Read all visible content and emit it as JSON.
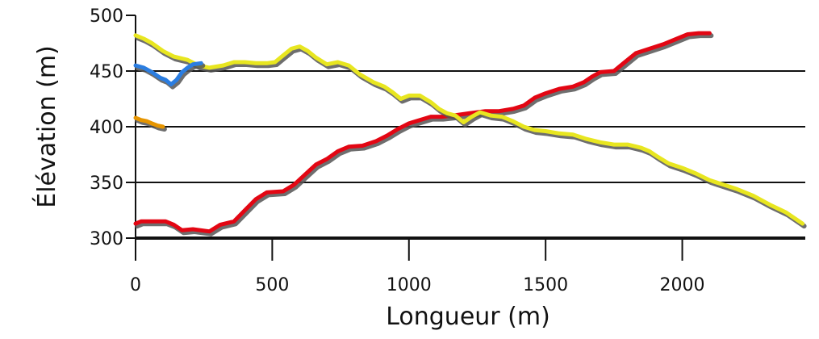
{
  "chart_data": {
    "type": "line",
    "xlabel": "Longueur (m)",
    "ylabel": "Élévation (m)",
    "xlim": [
      0,
      2450
    ],
    "ylim": [
      300,
      500
    ],
    "xticks": [
      0,
      500,
      1000,
      1500,
      2000
    ],
    "yticks": [
      300,
      350,
      400,
      450,
      500
    ],
    "grid": "horizontal",
    "colors": {
      "red": "#e30613",
      "yellow": "#e8e620",
      "blue": "#2b7de0",
      "orange": "#e69500",
      "shadow": "#555555"
    },
    "series": [
      {
        "color": "red",
        "points": [
          [
            0,
            313
          ],
          [
            20,
            315
          ],
          [
            110,
            315
          ],
          [
            140,
            312
          ],
          [
            170,
            307
          ],
          [
            210,
            308
          ],
          [
            270,
            306
          ],
          [
            310,
            312
          ],
          [
            360,
            315
          ],
          [
            400,
            325
          ],
          [
            440,
            335
          ],
          [
            480,
            341
          ],
          [
            540,
            342
          ],
          [
            580,
            348
          ],
          [
            620,
            357
          ],
          [
            660,
            366
          ],
          [
            700,
            371
          ],
          [
            740,
            378
          ],
          [
            780,
            382
          ],
          [
            830,
            383
          ],
          [
            880,
            387
          ],
          [
            920,
            392
          ],
          [
            960,
            398
          ],
          [
            1000,
            403
          ],
          [
            1040,
            406
          ],
          [
            1080,
            409
          ],
          [
            1120,
            409
          ],
          [
            1160,
            410
          ],
          [
            1220,
            412
          ],
          [
            1280,
            414
          ],
          [
            1330,
            414
          ],
          [
            1380,
            416
          ],
          [
            1420,
            419
          ],
          [
            1460,
            426
          ],
          [
            1500,
            430
          ],
          [
            1550,
            434
          ],
          [
            1600,
            436
          ],
          [
            1640,
            440
          ],
          [
            1670,
            445
          ],
          [
            1700,
            449
          ],
          [
            1750,
            450
          ],
          [
            1790,
            458
          ],
          [
            1830,
            466
          ],
          [
            1880,
            470
          ],
          [
            1930,
            474
          ],
          [
            1980,
            479
          ],
          [
            2020,
            483
          ],
          [
            2060,
            484
          ],
          [
            2100,
            484
          ]
        ]
      },
      {
        "color": "yellow",
        "points": [
          [
            0,
            482
          ],
          [
            30,
            479
          ],
          [
            60,
            475
          ],
          [
            100,
            468
          ],
          [
            140,
            463
          ],
          [
            190,
            460
          ],
          [
            230,
            455
          ],
          [
            270,
            453
          ],
          [
            320,
            455
          ],
          [
            360,
            458
          ],
          [
            400,
            458
          ],
          [
            440,
            457
          ],
          [
            480,
            457
          ],
          [
            510,
            458
          ],
          [
            540,
            464
          ],
          [
            570,
            470
          ],
          [
            600,
            472
          ],
          [
            630,
            468
          ],
          [
            660,
            462
          ],
          [
            700,
            456
          ],
          [
            740,
            458
          ],
          [
            780,
            455
          ],
          [
            820,
            447
          ],
          [
            870,
            440
          ],
          [
            910,
            436
          ],
          [
            940,
            431
          ],
          [
            970,
            425
          ],
          [
            1000,
            428
          ],
          [
            1040,
            428
          ],
          [
            1080,
            422
          ],
          [
            1110,
            416
          ],
          [
            1140,
            412
          ],
          [
            1170,
            410
          ],
          [
            1200,
            404
          ],
          [
            1230,
            409
          ],
          [
            1260,
            413
          ],
          [
            1300,
            410
          ],
          [
            1340,
            409
          ],
          [
            1380,
            405
          ],
          [
            1420,
            400
          ],
          [
            1460,
            397
          ],
          [
            1500,
            396
          ],
          [
            1550,
            394
          ],
          [
            1600,
            393
          ],
          [
            1650,
            389
          ],
          [
            1700,
            386
          ],
          [
            1750,
            384
          ],
          [
            1800,
            384
          ],
          [
            1850,
            381
          ],
          [
            1880,
            378
          ],
          [
            1910,
            373
          ],
          [
            1950,
            367
          ],
          [
            2000,
            363
          ],
          [
            2050,
            358
          ],
          [
            2100,
            352
          ],
          [
            2150,
            348
          ],
          [
            2200,
            344
          ],
          [
            2260,
            338
          ],
          [
            2320,
            330
          ],
          [
            2380,
            323
          ],
          [
            2440,
            313
          ]
        ]
      },
      {
        "color": "blue",
        "points": [
          [
            0,
            455
          ],
          [
            30,
            453
          ],
          [
            60,
            449
          ],
          [
            90,
            444
          ],
          [
            110,
            442
          ],
          [
            130,
            438
          ],
          [
            150,
            442
          ],
          [
            170,
            449
          ],
          [
            190,
            453
          ],
          [
            210,
            456
          ],
          [
            240,
            457
          ]
        ]
      },
      {
        "color": "orange",
        "points": [
          [
            0,
            408
          ],
          [
            20,
            406
          ],
          [
            40,
            405
          ],
          [
            60,
            403
          ],
          [
            80,
            401
          ],
          [
            100,
            400
          ]
        ]
      }
    ]
  }
}
